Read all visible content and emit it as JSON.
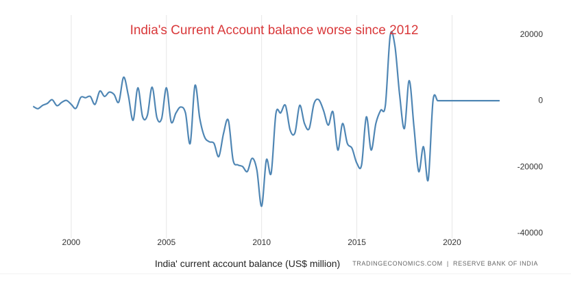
{
  "chart_data": {
    "type": "line",
    "title": "India's Current Account balance worse since 2012",
    "xlabel": "India' current account balance (US$ million)",
    "ylabel": "",
    "source": "TRADINGECONOMICS.COM  |  RESERVE BANK OF INDIA",
    "x_ticks": [
      "2000",
      "2005",
      "2010",
      "2015",
      "2020"
    ],
    "y_ticks": [
      "20000",
      "0",
      "-20000",
      "-40000"
    ],
    "xlim": [
      1997.7,
      2022.9
    ],
    "ylim": [
      -40000,
      20000
    ],
    "grid": {
      "vertical": true,
      "horizontal": false
    },
    "colors": {
      "line": "#4f86b4",
      "title": "#d9383a",
      "grid": "#e6e6e6"
    },
    "series": [
      {
        "x": [
          1998.0,
          1998.25,
          1998.5,
          1998.75,
          1999.0,
          1999.25,
          1999.5,
          1999.75,
          2000.0,
          2000.25,
          2000.5,
          2000.75,
          2001.0,
          2001.25,
          2001.5,
          2001.75,
          2002.0,
          2002.25,
          2002.5,
          2002.75,
          2003.0,
          2003.25,
          2003.5,
          2003.75,
          2004.0,
          2004.25,
          2004.5,
          2004.75,
          2005.0,
          2005.25,
          2005.5,
          2005.75,
          2006.0,
          2006.25,
          2006.5,
          2006.75,
          2007.0,
          2007.25,
          2007.5,
          2007.75,
          2008.0,
          2008.25,
          2008.5,
          2008.75,
          2009.0,
          2009.25,
          2009.5,
          2009.75,
          2010.0,
          2010.25,
          2010.5,
          2010.75,
          2011.0,
          2011.25,
          2011.5,
          2011.75,
          2012.0,
          2012.25,
          2012.5,
          2012.75,
          2013.0,
          2013.25,
          2013.5,
          2013.75,
          2014.0,
          2014.25,
          2014.5,
          2014.75,
          2015.0,
          2015.25,
          2015.5,
          2015.75,
          2016.0,
          2016.25,
          2016.5,
          2016.75,
          2017.0,
          2017.25,
          2017.5,
          2017.75,
          2018.0,
          2018.25,
          2018.5,
          2018.75,
          2019.0,
          2019.25,
          2019.5,
          2019.75,
          2020.0,
          2020.25,
          2020.5,
          2020.75,
          2021.0,
          2021.25,
          2021.5,
          2021.75,
          2022.0,
          2022.25,
          2022.5
        ],
        "values": [
          -1800,
          -2500,
          -1500,
          -900,
          200,
          -1600,
          -600,
          0,
          -1200,
          -2400,
          900,
          800,
          1200,
          -1200,
          2800,
          1200,
          2500,
          1800,
          -500,
          7000,
          1500,
          -6000,
          3800,
          -5000,
          -4500,
          4000,
          -5200,
          -5500,
          3800,
          -6500,
          -3800,
          -2000,
          -3800,
          -13000,
          4500,
          -5400,
          -11000,
          -12500,
          -13000,
          -17000,
          -10000,
          -6000,
          -18000,
          -19500,
          -20000,
          -21500,
          -17500,
          -21000,
          -32000,
          -18000,
          -22000,
          -4000,
          -3800,
          -1500,
          -9000,
          -9800,
          -1500,
          -7000,
          -8500,
          -1000,
          200,
          -3000,
          -7500,
          -3500,
          -15000,
          -7000,
          -13000,
          -14500,
          -19000,
          -19500,
          -5000,
          -15000,
          -7000,
          -3000,
          -1500,
          19500,
          16500,
          1500,
          -8500,
          6000,
          -8000,
          -21500,
          -14000,
          -24000,
          -100,
          -100,
          -100,
          -100,
          -100,
          -100,
          -100,
          -100,
          -100,
          -100,
          -100,
          -100,
          -100,
          -100,
          -100
        ]
      }
    ]
  }
}
